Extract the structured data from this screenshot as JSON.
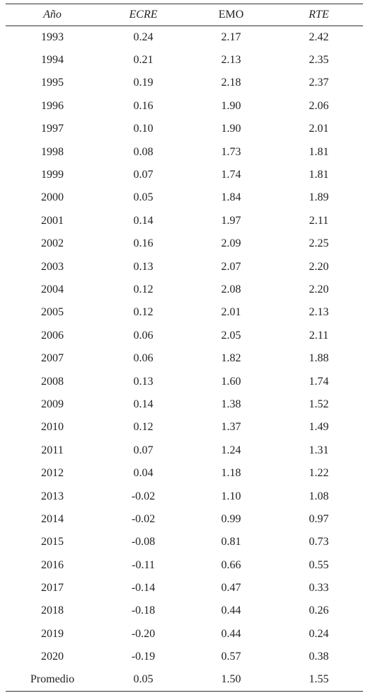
{
  "table": {
    "header": [
      "Año",
      "ECRE",
      "EMO",
      "RTE"
    ],
    "rows": [
      [
        "1993",
        "0.24",
        "2.17",
        "2.42"
      ],
      [
        "1994",
        "0.21",
        "2.13",
        "2.35"
      ],
      [
        "1995",
        "0.19",
        "2.18",
        "2.37"
      ],
      [
        "1996",
        "0.16",
        "1.90",
        "2.06"
      ],
      [
        "1997",
        "0.10",
        "1.90",
        "2.01"
      ],
      [
        "1998",
        "0.08",
        "1.73",
        "1.81"
      ],
      [
        "1999",
        "0.07",
        "1.74",
        "1.81"
      ],
      [
        "2000",
        "0.05",
        "1.84",
        "1.89"
      ],
      [
        "2001",
        "0.14",
        "1.97",
        "2.11"
      ],
      [
        "2002",
        "0.16",
        "2.09",
        "2.25"
      ],
      [
        "2003",
        "0.13",
        "2.07",
        "2.20"
      ],
      [
        "2004",
        "0.12",
        "2.08",
        "2.20"
      ],
      [
        "2005",
        "0.12",
        "2.01",
        "2.13"
      ],
      [
        "2006",
        "0.06",
        "2.05",
        "2.11"
      ],
      [
        "2007",
        "0.06",
        "1.82",
        "1.88"
      ],
      [
        "2008",
        "0.13",
        "1.60",
        "1.74"
      ],
      [
        "2009",
        "0.14",
        "1.38",
        "1.52"
      ],
      [
        "2010",
        "0.12",
        "1.37",
        "1.49"
      ],
      [
        "2011",
        "0.07",
        "1.24",
        "1.31"
      ],
      [
        "2012",
        "0.04",
        "1.18",
        "1.22"
      ],
      [
        "2013",
        "-0.02",
        "1.10",
        "1.08"
      ],
      [
        "2014",
        "-0.02",
        "0.99",
        "0.97"
      ],
      [
        "2015",
        "-0.08",
        "0.81",
        "0.73"
      ],
      [
        "2016",
        "-0.11",
        "0.66",
        "0.55"
      ],
      [
        "2017",
        "-0.14",
        "0.47",
        "0.33"
      ],
      [
        "2018",
        "-0.18",
        "0.44",
        "0.26"
      ],
      [
        "2019",
        "-0.20",
        "0.44",
        "0.24"
      ],
      [
        "2020",
        "-0.19",
        "0.57",
        "0.38"
      ],
      [
        "Promedio",
        "0.05",
        "1.50",
        "1.55"
      ]
    ]
  }
}
